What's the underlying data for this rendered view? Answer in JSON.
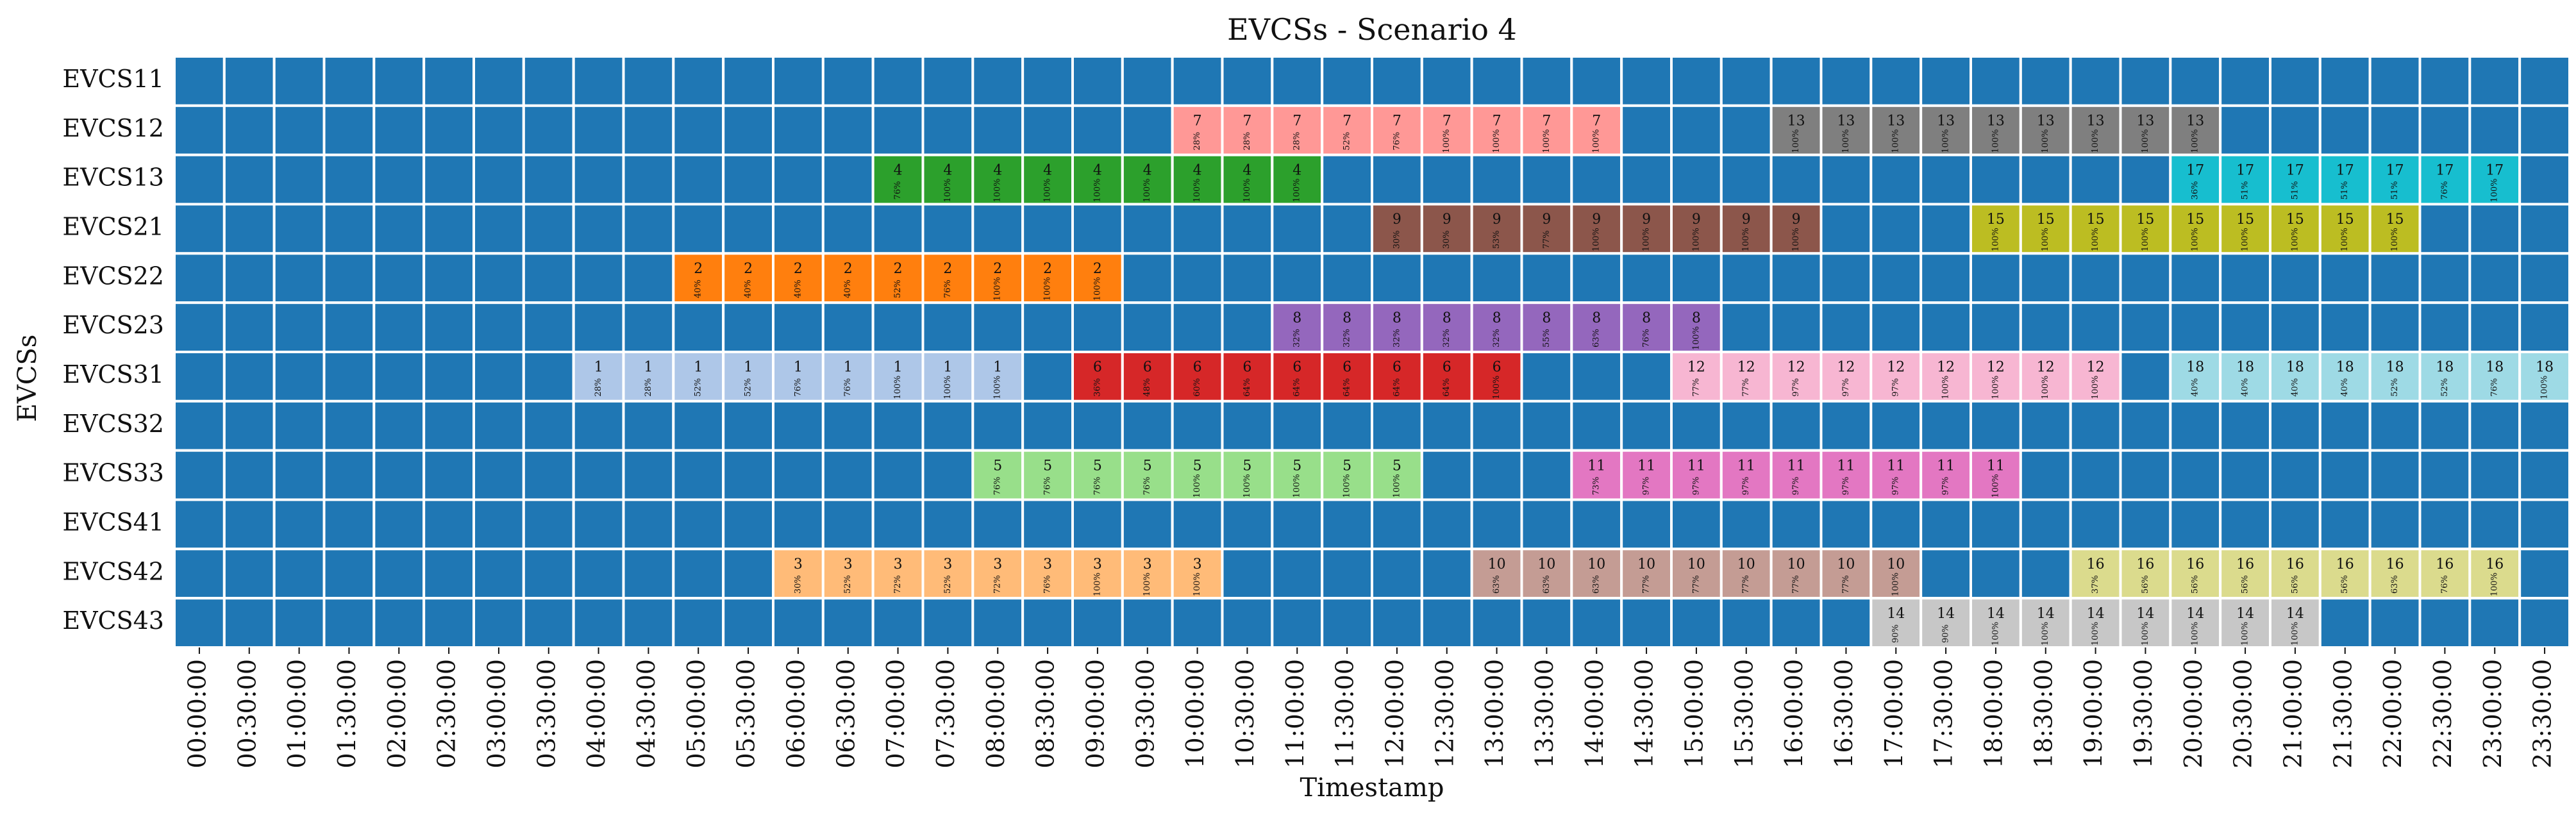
{
  "chart_data": {
    "type": "heatmap",
    "title": "EVCSs - Scenario 4",
    "xlabel": "Timestamp",
    "ylabel": "EVCSs",
    "background_color": "#1f77b4",
    "rows": [
      "EVCS11",
      "EVCS12",
      "EVCS13",
      "EVCS21",
      "EVCS22",
      "EVCS23",
      "EVCS31",
      "EVCS32",
      "EVCS33",
      "EVCS41",
      "EVCS42",
      "EVCS43"
    ],
    "timestamps": [
      "00:00:00",
      "00:30:00",
      "01:00:00",
      "01:30:00",
      "02:00:00",
      "02:30:00",
      "03:00:00",
      "03:30:00",
      "04:00:00",
      "04:30:00",
      "05:00:00",
      "05:30:00",
      "06:00:00",
      "06:30:00",
      "07:00:00",
      "07:30:00",
      "08:00:00",
      "08:30:00",
      "09:00:00",
      "09:30:00",
      "10:00:00",
      "10:30:00",
      "11:00:00",
      "11:30:00",
      "12:00:00",
      "12:30:00",
      "13:00:00",
      "13:30:00",
      "14:00:00",
      "14:30:00",
      "15:00:00",
      "15:30:00",
      "16:00:00",
      "16:30:00",
      "17:00:00",
      "17:30:00",
      "18:00:00",
      "18:30:00",
      "19:00:00",
      "19:30:00",
      "20:00:00",
      "20:30:00",
      "21:00:00",
      "21:30:00",
      "22:00:00",
      "22:30:00",
      "23:00:00",
      "23:30:00"
    ],
    "sessions": [
      {
        "ev": "1",
        "station": "EVCS31",
        "start": "04:00:00",
        "color": "#aec7e8",
        "soc": [
          "28%",
          "28%",
          "52%",
          "52%",
          "76%",
          "76%",
          "100%",
          "100%",
          "100%"
        ]
      },
      {
        "ev": "2",
        "station": "EVCS22",
        "start": "05:00:00",
        "color": "#ff7f0e",
        "soc": [
          "40%",
          "40%",
          "40%",
          "40%",
          "52%",
          "76%",
          "100%",
          "100%",
          "100%"
        ]
      },
      {
        "ev": "3",
        "station": "EVCS42",
        "start": "06:00:00",
        "color": "#ffbb78",
        "soc": [
          "30%",
          "52%",
          "72%",
          "52%",
          "72%",
          "76%",
          "100%",
          "100%",
          "100%"
        ]
      },
      {
        "ev": "4",
        "station": "EVCS13",
        "start": "07:00:00",
        "color": "#2ca02c",
        "soc": [
          "76%",
          "100%",
          "100%",
          "100%",
          "100%",
          "100%",
          "100%",
          "100%",
          "100%"
        ]
      },
      {
        "ev": "5",
        "station": "EVCS33",
        "start": "08:00:00",
        "color": "#98df8a",
        "soc": [
          "76%",
          "76%",
          "76%",
          "76%",
          "100%",
          "100%",
          "100%",
          "100%",
          "100%"
        ]
      },
      {
        "ev": "6",
        "station": "EVCS31",
        "start": "09:00:00",
        "color": "#d62728",
        "soc": [
          "36%",
          "48%",
          "60%",
          "64%",
          "64%",
          "64%",
          "64%",
          "64%",
          "100%"
        ]
      },
      {
        "ev": "7",
        "station": "EVCS12",
        "start": "10:00:00",
        "color": "#ff9896",
        "soc": [
          "28%",
          "28%",
          "28%",
          "52%",
          "76%",
          "100%",
          "100%",
          "100%",
          "100%"
        ]
      },
      {
        "ev": "8",
        "station": "EVCS23",
        "start": "11:00:00",
        "color": "#9467bd",
        "soc": [
          "32%",
          "32%",
          "32%",
          "32%",
          "32%",
          "55%",
          "63%",
          "76%",
          "100%"
        ]
      },
      {
        "ev": "9",
        "station": "EVCS21",
        "start": "12:00:00",
        "color": "#8c564b",
        "soc": [
          "30%",
          "30%",
          "53%",
          "77%",
          "100%",
          "100%",
          "100%",
          "100%",
          "100%"
        ]
      },
      {
        "ev": "10",
        "station": "EVCS42",
        "start": "13:00:00",
        "color": "#c49c94",
        "soc": [
          "63%",
          "63%",
          "63%",
          "77%",
          "77%",
          "77%",
          "77%",
          "77%",
          "100%"
        ]
      },
      {
        "ev": "11",
        "station": "EVCS33",
        "start": "14:00:00",
        "color": "#e377c2",
        "soc": [
          "73%",
          "97%",
          "97%",
          "97%",
          "97%",
          "97%",
          "97%",
          "97%",
          "100%"
        ]
      },
      {
        "ev": "12",
        "station": "EVCS31",
        "start": "15:00:00",
        "color": "#f7b6d2",
        "soc": [
          "77%",
          "77%",
          "97%",
          "97%",
          "97%",
          "100%",
          "100%",
          "100%",
          "100%"
        ]
      },
      {
        "ev": "13",
        "station": "EVCS12",
        "start": "16:00:00",
        "color": "#7f7f7f",
        "soc": [
          "100%",
          "100%",
          "100%",
          "100%",
          "100%",
          "100%",
          "100%",
          "100%",
          "100%"
        ]
      },
      {
        "ev": "14",
        "station": "EVCS43",
        "start": "17:00:00",
        "color": "#c7c7c7",
        "soc": [
          "90%",
          "90%",
          "100%",
          "100%",
          "100%",
          "100%",
          "100%",
          "100%",
          "100%"
        ]
      },
      {
        "ev": "15",
        "station": "EVCS21",
        "start": "18:00:00",
        "color": "#bcbd22",
        "soc": [
          "100%",
          "100%",
          "100%",
          "100%",
          "100%",
          "100%",
          "100%",
          "100%",
          "100%"
        ]
      },
      {
        "ev": "16",
        "station": "EVCS42",
        "start": "19:00:00",
        "color": "#dbdb8d",
        "soc": [
          "37%",
          "56%",
          "56%",
          "56%",
          "56%",
          "56%",
          "63%",
          "76%",
          "100%"
        ]
      },
      {
        "ev": "17",
        "station": "EVCS13",
        "start": "20:00:00",
        "color": "#17becf",
        "soc": [
          "36%",
          "51%",
          "51%",
          "51%",
          "51%",
          "76%",
          "100%"
        ]
      },
      {
        "ev": "18",
        "station": "EVCS31",
        "start": "20:00:00",
        "color": "#9edae5",
        "soc": [
          "40%",
          "40%",
          "40%",
          "40%",
          "52%",
          "52%",
          "76%",
          "100%"
        ]
      }
    ]
  }
}
